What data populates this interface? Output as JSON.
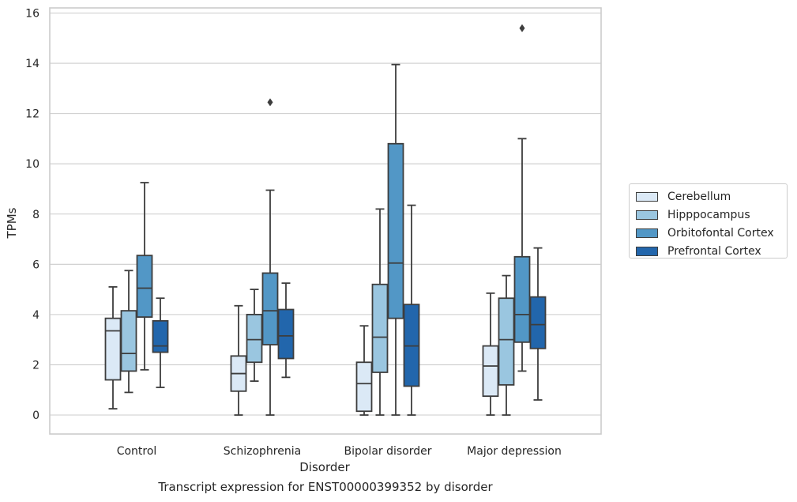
{
  "chart_data": {
    "type": "box",
    "xlabel": "Disorder",
    "ylabel": "TPMs",
    "caption": "Transcript expression for ENST00000399352 by disorder",
    "ylim": [
      -0.7,
      16.2
    ],
    "yticks": [
      0,
      2,
      4,
      6,
      8,
      10,
      12,
      14,
      16
    ],
    "grid": "horizontal",
    "legend_position": "right",
    "categories": [
      "Control",
      "Schizophrenia",
      "Bipolar disorder",
      "Major depression"
    ],
    "series": [
      {
        "name": "Cerebellum",
        "color": "#dbe9f6",
        "boxes": [
          {
            "whislo": 0.25,
            "q1": 1.4,
            "med": 3.35,
            "q3": 3.85,
            "whishi": 5.1,
            "fliers": []
          },
          {
            "whislo": 0.0,
            "q1": 0.95,
            "med": 1.65,
            "q3": 2.35,
            "whishi": 4.35,
            "fliers": []
          },
          {
            "whislo": 0.0,
            "q1": 0.15,
            "med": 1.25,
            "q3": 2.1,
            "whishi": 3.55,
            "fliers": []
          },
          {
            "whislo": 0.0,
            "q1": 0.75,
            "med": 1.95,
            "q3": 2.75,
            "whishi": 4.85,
            "fliers": []
          }
        ]
      },
      {
        "name": "Hipppocampus",
        "color": "#9ac6e0",
        "boxes": [
          {
            "whislo": 0.9,
            "q1": 1.75,
            "med": 2.45,
            "q3": 4.15,
            "whishi": 5.75,
            "fliers": []
          },
          {
            "whislo": 1.35,
            "q1": 2.1,
            "med": 3.0,
            "q3": 4.0,
            "whishi": 5.0,
            "fliers": []
          },
          {
            "whislo": 0.0,
            "q1": 1.7,
            "med": 3.1,
            "q3": 5.2,
            "whishi": 8.2,
            "fliers": []
          },
          {
            "whislo": 0.0,
            "q1": 1.2,
            "med": 3.0,
            "q3": 4.65,
            "whishi": 5.55,
            "fliers": []
          }
        ]
      },
      {
        "name": "Orbitofontal Cortex",
        "color": "#5297c6",
        "boxes": [
          {
            "whislo": 1.8,
            "q1": 3.9,
            "med": 5.05,
            "q3": 6.35,
            "whishi": 9.25,
            "fliers": []
          },
          {
            "whislo": 0.0,
            "q1": 2.8,
            "med": 4.15,
            "q3": 5.65,
            "whishi": 8.95,
            "fliers": [
              12.45
            ]
          },
          {
            "whislo": 0.0,
            "q1": 3.85,
            "med": 6.05,
            "q3": 10.8,
            "whishi": 13.95,
            "fliers": []
          },
          {
            "whislo": 1.75,
            "q1": 2.9,
            "med": 4.0,
            "q3": 6.3,
            "whishi": 11.0,
            "fliers": [
              15.4
            ]
          }
        ]
      },
      {
        "name": "Prefrontal Cortex",
        "color": "#2266ac",
        "boxes": [
          {
            "whislo": 1.1,
            "q1": 2.5,
            "med": 2.75,
            "q3": 3.75,
            "whishi": 4.65,
            "fliers": []
          },
          {
            "whislo": 1.5,
            "q1": 2.25,
            "med": 3.15,
            "q3": 4.2,
            "whishi": 5.25,
            "fliers": []
          },
          {
            "whislo": 0.0,
            "q1": 1.15,
            "med": 2.75,
            "q3": 4.4,
            "whishi": 8.35,
            "fliers": []
          },
          {
            "whislo": 0.6,
            "q1": 2.65,
            "med": 3.6,
            "q3": 4.7,
            "whishi": 6.65,
            "fliers": []
          }
        ]
      }
    ]
  }
}
